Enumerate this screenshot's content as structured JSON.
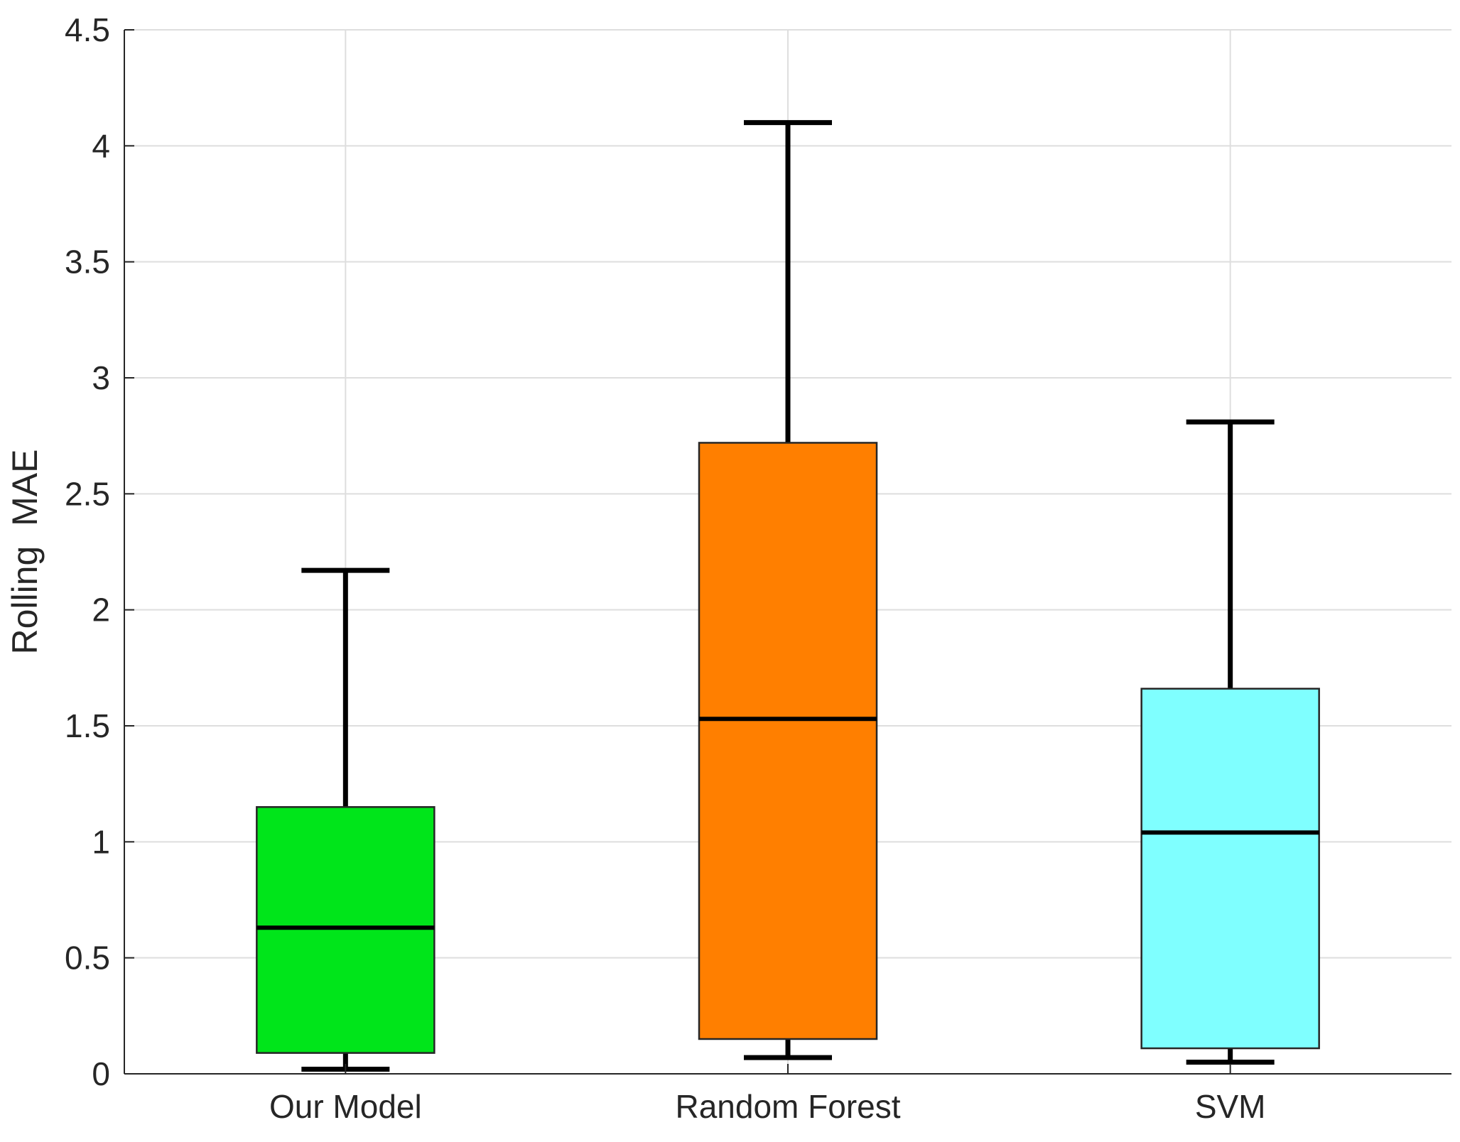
{
  "chart_data": {
    "type": "box",
    "title": "",
    "xlabel": "",
    "ylabel": "Rolling  MAE",
    "ylim": [
      0,
      4.5
    ],
    "yticks": [
      "0",
      "0.5",
      "1",
      "1.5",
      "2",
      "2.5",
      "3",
      "3.5",
      "4",
      "4.5"
    ],
    "grid": true,
    "legend": "none",
    "categories": [
      "Our Model",
      "Random Forest",
      "SVM"
    ],
    "series": [
      {
        "category": "Our Model",
        "color": "#00e51a",
        "whisker_low": 0.02,
        "q1": 0.09,
        "median": 0.63,
        "q3": 1.15,
        "whisker_high": 2.17
      },
      {
        "category": "Random Forest",
        "color": "#ff7f00",
        "whisker_low": 0.07,
        "q1": 0.15,
        "median": 1.53,
        "q3": 2.72,
        "whisker_high": 4.1
      },
      {
        "category": "SVM",
        "color": "#7fffff",
        "whisker_low": 0.05,
        "q1": 0.11,
        "median": 1.04,
        "q3": 1.66,
        "whisker_high": 2.81
      }
    ]
  }
}
